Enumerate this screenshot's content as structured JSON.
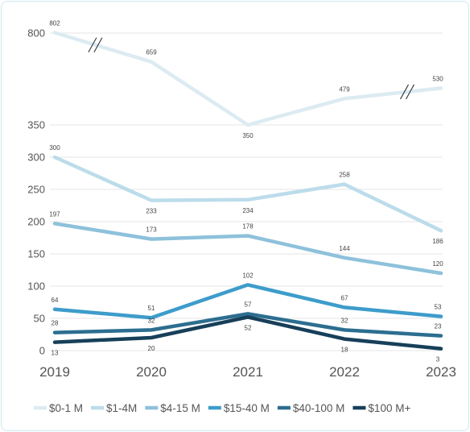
{
  "chart_data": {
    "type": "line",
    "title": "",
    "xlabel": "",
    "ylabel": "",
    "x": [
      "2019",
      "2020",
      "2021",
      "2022",
      "2023"
    ],
    "y_axis_break": true,
    "y_ticks_lower": [
      "0",
      "50",
      "100",
      "150",
      "200",
      "250",
      "300"
    ],
    "y_ticks_upper": [
      "350",
      "800"
    ],
    "ylim_lower": [
      0,
      300
    ],
    "ylim_upper": [
      350,
      800
    ],
    "grid": true,
    "legend_position": "bottom",
    "series": [
      {
        "name": "$0-1 M",
        "values": [
          802,
          659,
          350,
          479,
          530
        ],
        "labels": [
          "802",
          "659",
          "350",
          "479",
          "530"
        ],
        "color": "#dcebf2"
      },
      {
        "name": "$1-4M",
        "values": [
          300,
          233,
          234,
          258,
          186
        ],
        "labels": [
          "300",
          "233",
          "234",
          "258",
          "186"
        ],
        "color": "#bcdcea"
      },
      {
        "name": "$4-15 M",
        "values": [
          197,
          173,
          178,
          144,
          120
        ],
        "labels": [
          "197",
          "173",
          "178",
          "144",
          "120"
        ],
        "color": "#8ec1db"
      },
      {
        "name": "$15-40 M",
        "values": [
          64,
          51,
          102,
          67,
          53
        ],
        "labels": [
          "64",
          "51",
          "102",
          "67",
          "53"
        ],
        "color": "#3d9ccb"
      },
      {
        "name": "$40-100 M",
        "values": [
          28,
          32,
          57,
          32,
          23
        ],
        "labels": [
          "28",
          "32",
          "57",
          "32",
          "23"
        ],
        "color": "#2c6e90"
      },
      {
        "name": "$100 M+",
        "values": [
          13,
          20,
          52,
          18,
          3
        ],
        "labels": [
          "13",
          "20",
          "52",
          "18",
          "3"
        ],
        "color": "#173f59"
      }
    ]
  }
}
